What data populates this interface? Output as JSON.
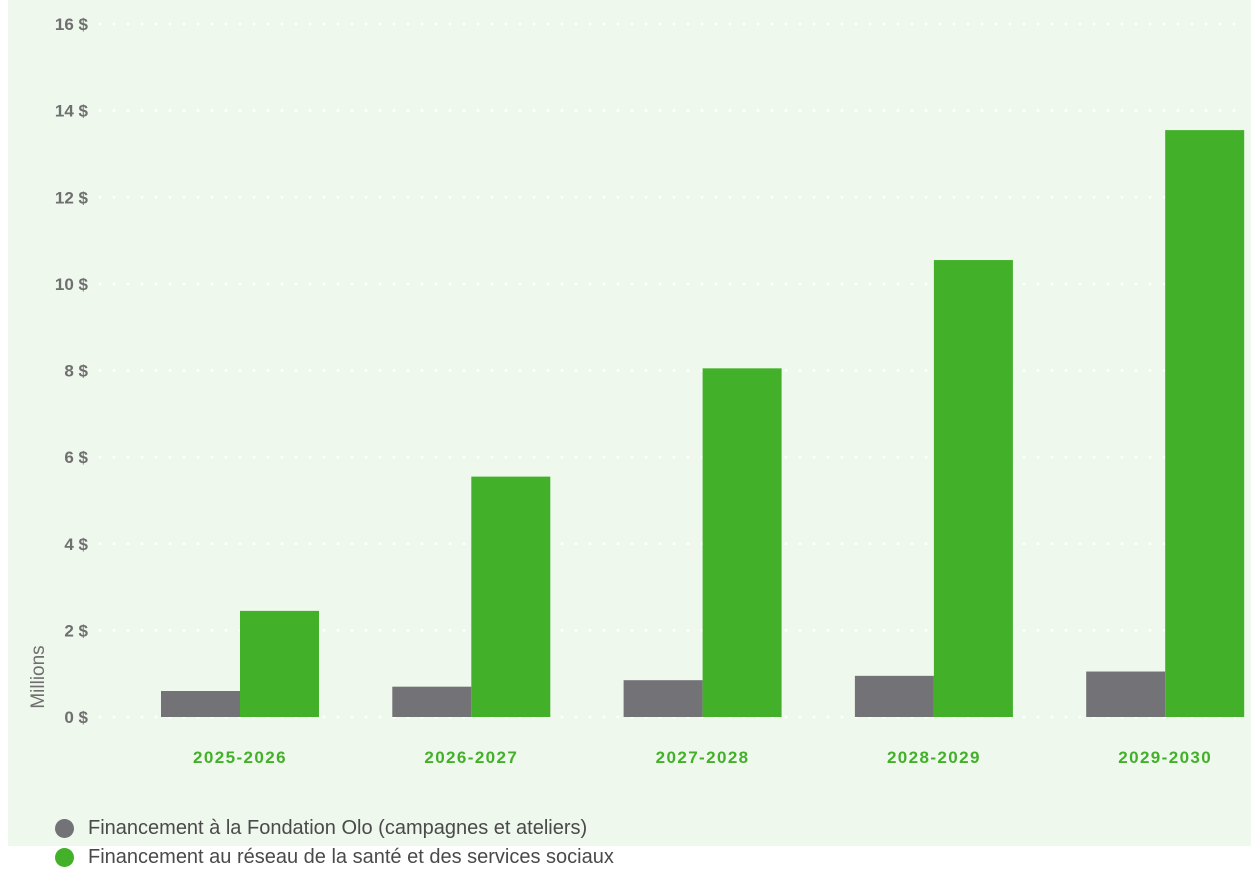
{
  "colors": {
    "panel_background": "#eef8ec",
    "grid": "#ffffff",
    "axis_text": "#6f6f6f",
    "category_text": "#43b02a",
    "series_fondation": "#737276",
    "series_reseau": "#43b02a"
  },
  "chart_data": {
    "type": "bar",
    "categories": [
      "2025-2026",
      "2026-2027",
      "2027-2028",
      "2028-2029",
      "2029-2030"
    ],
    "series": [
      {
        "name": "Financement à la Fondation Olo (campagnes et ateliers)",
        "values": [
          0.6,
          0.7,
          0.85,
          0.95,
          1.05
        ],
        "color": "#737276"
      },
      {
        "name": "Financement au réseau de la santé et des services sociaux",
        "values": [
          2.45,
          5.55,
          8.05,
          10.55,
          13.55
        ],
        "color": "#43b02a"
      }
    ],
    "ylim": [
      0,
      16
    ],
    "yticks": [
      {
        "value": 0,
        "label": "0 $"
      },
      {
        "value": 2,
        "label": "2 $"
      },
      {
        "value": 4,
        "label": "4 $"
      },
      {
        "value": 6,
        "label": "6 $"
      },
      {
        "value": 8,
        "label": "8 $"
      },
      {
        "value": 10,
        "label": "10 $"
      },
      {
        "value": 12,
        "label": "12 $"
      },
      {
        "value": 14,
        "label": "14 $"
      },
      {
        "value": 16,
        "label": "16 $"
      }
    ],
    "ylabel": "Millions",
    "xlabel": "",
    "grid": true,
    "grid_style": "dotted",
    "legend_position": "bottom-left"
  }
}
